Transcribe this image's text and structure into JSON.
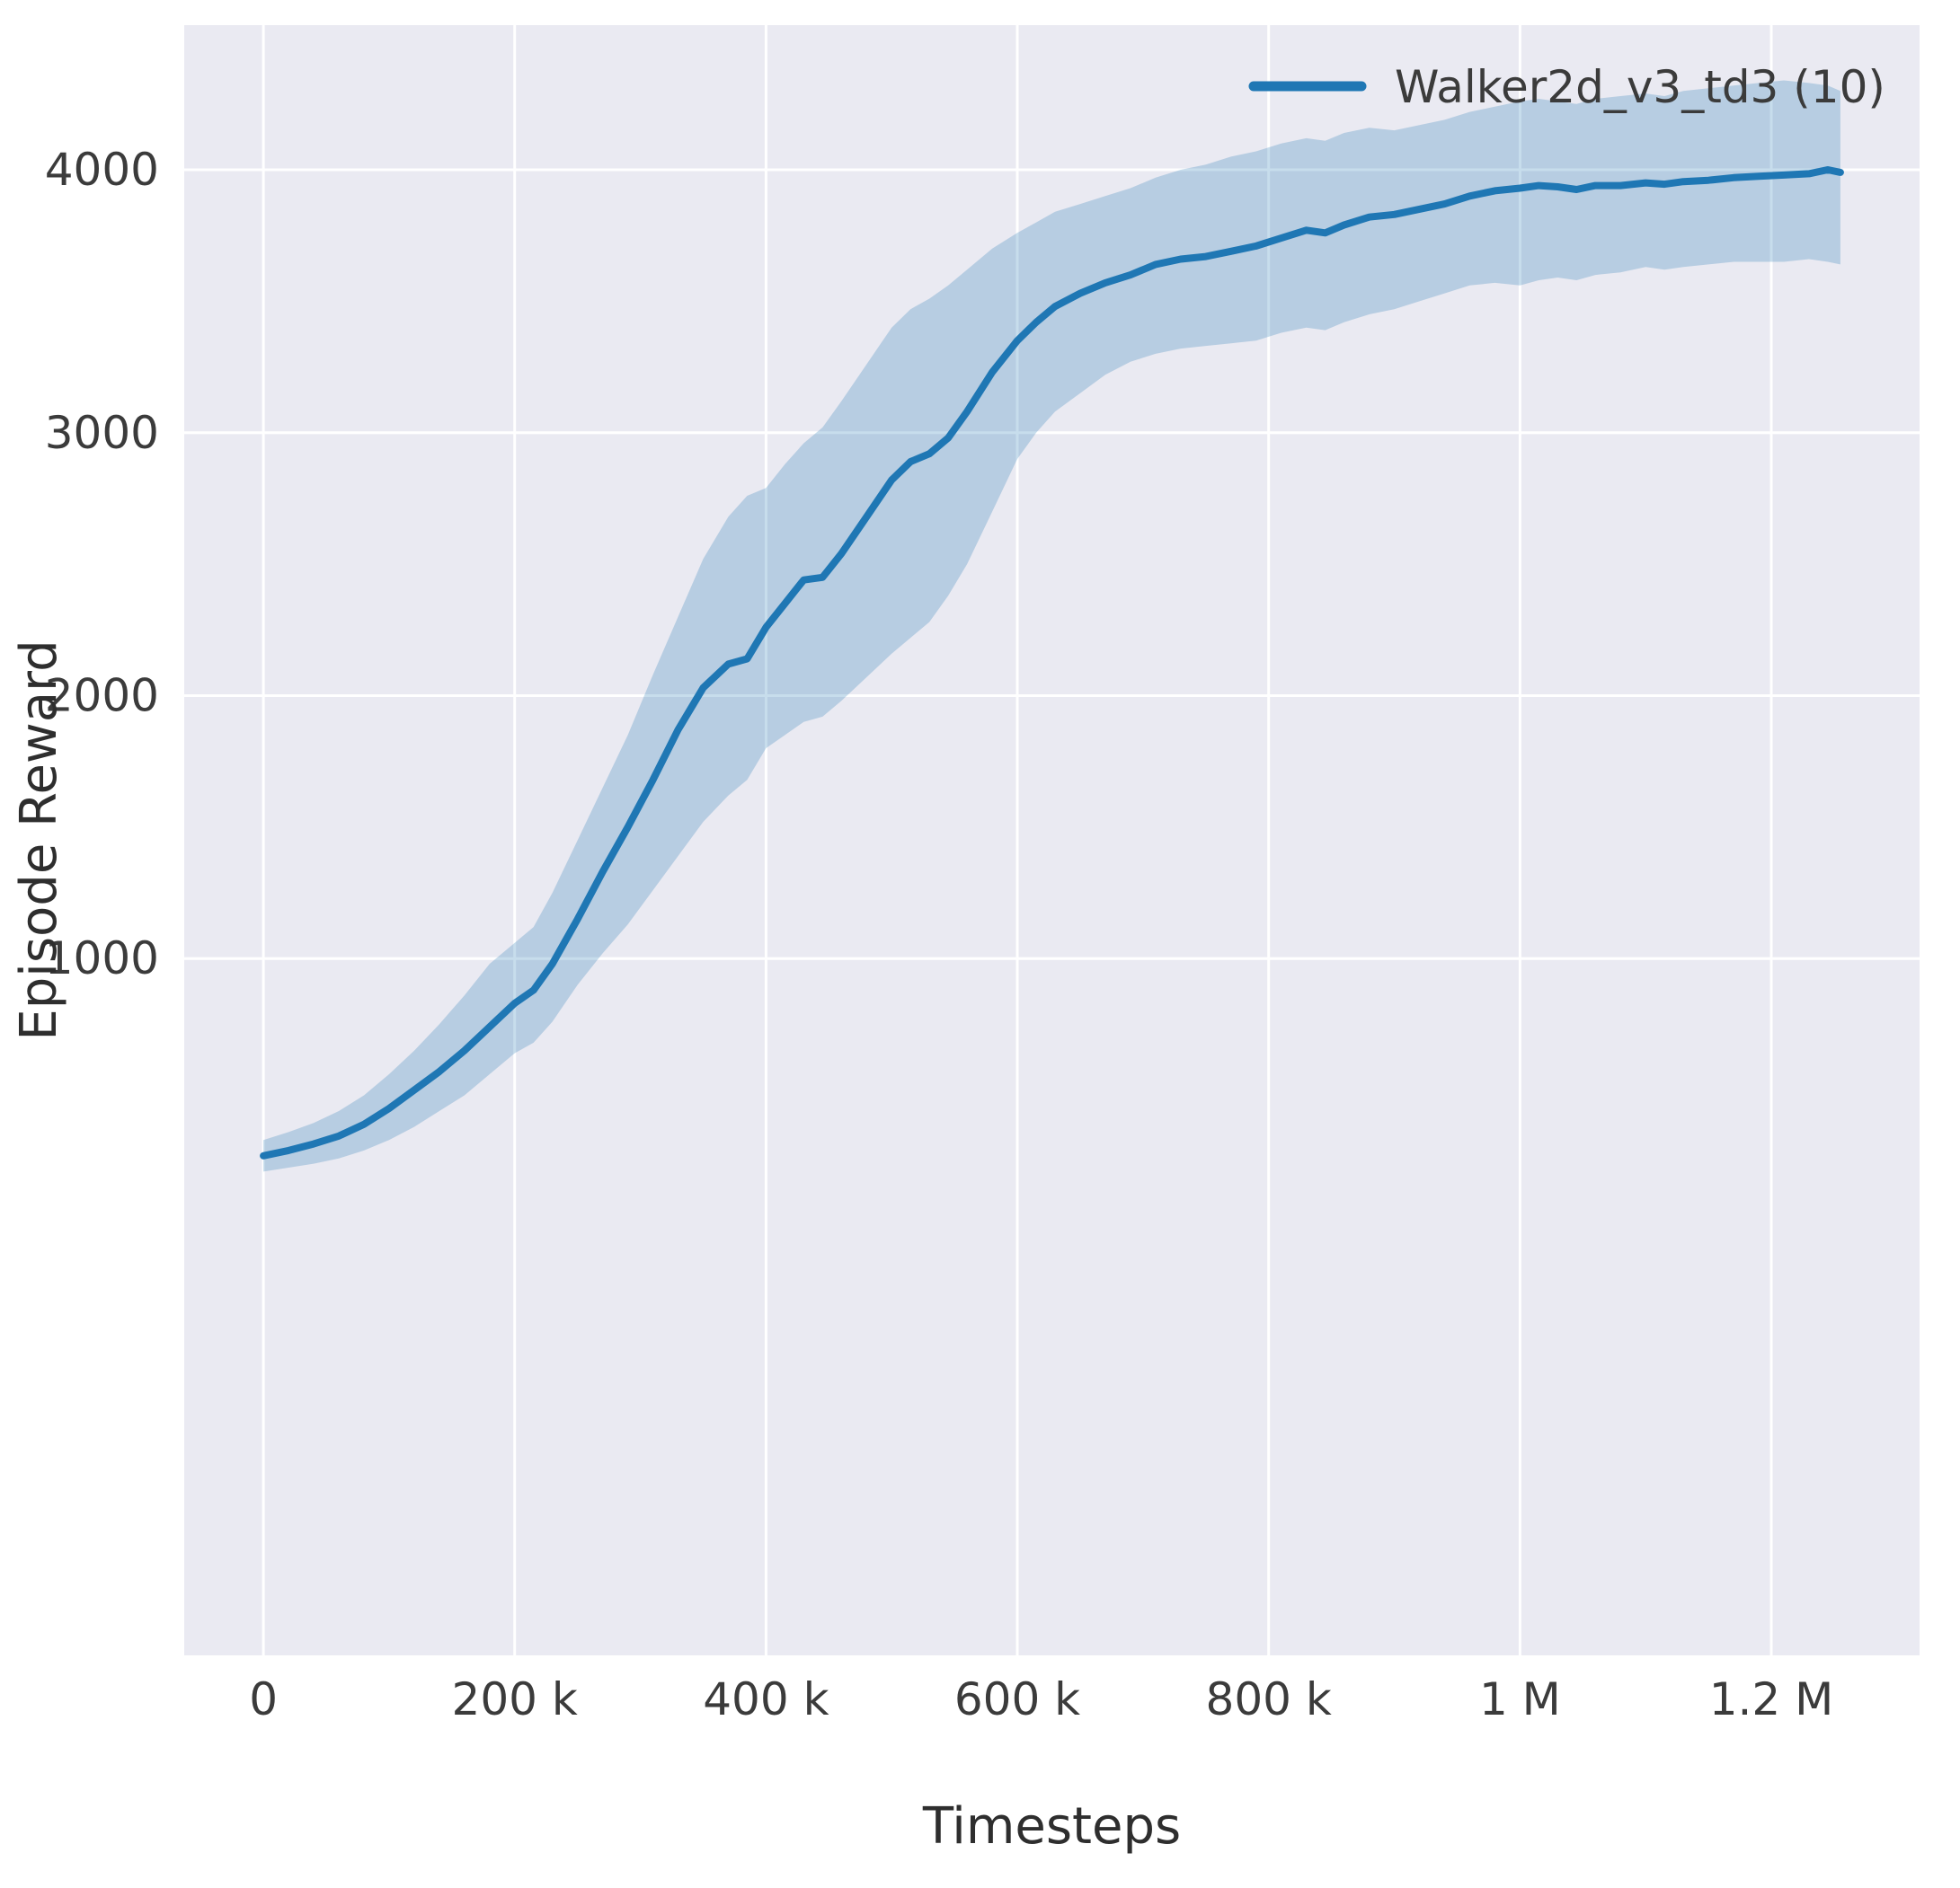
{
  "chart_data": {
    "type": "line",
    "xlabel": "Timesteps",
    "ylabel": "Episode Reward",
    "x_unit": "thousands of timesteps",
    "grid": true,
    "legend_position": "upper right",
    "legend": [
      {
        "label": "Walker2d_v3_td3 (10)",
        "color": "#1f77b4"
      }
    ],
    "colors": {
      "plot_bg": "#eaeaf2",
      "grid": "#ffffff",
      "text": "#3b3b3b",
      "axis_label": "#2e2e2e",
      "line": "#1f77b4"
    },
    "band_opacity": 0.25,
    "xlim": [
      -63,
      1318
    ],
    "ylim": [
      -1650,
      4550
    ],
    "x_ticks": [
      {
        "value": 0,
        "label": "0"
      },
      {
        "value": 200,
        "label": "200 k"
      },
      {
        "value": 400,
        "label": "400 k"
      },
      {
        "value": 600,
        "label": "600 k"
      },
      {
        "value": 800,
        "label": "800 k"
      },
      {
        "value": 1000,
        "label": "1 M"
      },
      {
        "value": 1200,
        "label": "1.2 M"
      }
    ],
    "y_ticks": [
      {
        "value": 1000,
        "label": "1000"
      },
      {
        "value": 2000,
        "label": "2000"
      },
      {
        "value": 3000,
        "label": "3000"
      },
      {
        "value": 4000,
        "label": "4000"
      }
    ],
    "series": [
      {
        "name": "Walker2d_v3_td3 (10)",
        "color": "#1f77b4",
        "x": [
          0,
          20,
          40,
          60,
          80,
          100,
          120,
          140,
          160,
          180,
          200,
          215,
          230,
          250,
          270,
          290,
          310,
          330,
          350,
          370,
          385,
          400,
          415,
          430,
          445,
          460,
          480,
          500,
          515,
          530,
          545,
          560,
          580,
          600,
          615,
          630,
          650,
          670,
          690,
          710,
          730,
          750,
          770,
          790,
          810,
          830,
          845,
          860,
          880,
          900,
          920,
          940,
          960,
          980,
          1000,
          1015,
          1030,
          1045,
          1060,
          1080,
          1100,
          1115,
          1130,
          1150,
          1170,
          1190,
          1210,
          1230,
          1245,
          1255
        ],
        "mean": [
          250,
          270,
          295,
          325,
          370,
          430,
          500,
          570,
          650,
          740,
          830,
          880,
          980,
          1150,
          1330,
          1500,
          1680,
          1870,
          2030,
          2120,
          2140,
          2260,
          2350,
          2440,
          2450,
          2540,
          2680,
          2820,
          2890,
          2920,
          2980,
          3080,
          3230,
          3350,
          3420,
          3480,
          3530,
          3570,
          3600,
          3640,
          3660,
          3670,
          3690,
          3710,
          3740,
          3770,
          3760,
          3790,
          3820,
          3830,
          3850,
          3870,
          3900,
          3920,
          3930,
          3940,
          3935,
          3925,
          3940,
          3940,
          3950,
          3945,
          3955,
          3960,
          3970,
          3975,
          3980,
          3985,
          4000,
          3990
        ],
        "lower": [
          190,
          205,
          220,
          240,
          270,
          310,
          360,
          420,
          480,
          560,
          640,
          680,
          760,
          900,
          1020,
          1130,
          1260,
          1390,
          1520,
          1620,
          1680,
          1800,
          1850,
          1900,
          1920,
          1980,
          2070,
          2160,
          2220,
          2280,
          2380,
          2500,
          2700,
          2900,
          3000,
          3080,
          3150,
          3220,
          3270,
          3300,
          3320,
          3330,
          3340,
          3350,
          3380,
          3400,
          3390,
          3420,
          3450,
          3470,
          3500,
          3530,
          3560,
          3570,
          3560,
          3580,
          3590,
          3580,
          3600,
          3610,
          3630,
          3620,
          3630,
          3640,
          3650,
          3650,
          3650,
          3660,
          3650,
          3640
        ],
        "upper": [
          310,
          340,
          375,
          420,
          480,
          560,
          650,
          750,
          860,
          980,
          1060,
          1120,
          1250,
          1450,
          1650,
          1850,
          2080,
          2300,
          2520,
          2680,
          2760,
          2790,
          2880,
          2960,
          3020,
          3120,
          3260,
          3400,
          3470,
          3510,
          3560,
          3620,
          3700,
          3760,
          3800,
          3840,
          3870,
          3900,
          3930,
          3970,
          4000,
          4020,
          4050,
          4070,
          4100,
          4120,
          4110,
          4140,
          4160,
          4150,
          4170,
          4190,
          4220,
          4240,
          4260,
          4270,
          4260,
          4250,
          4270,
          4280,
          4290,
          4280,
          4300,
          4310,
          4320,
          4330,
          4340,
          4330,
          4320,
          4300
        ]
      }
    ]
  }
}
